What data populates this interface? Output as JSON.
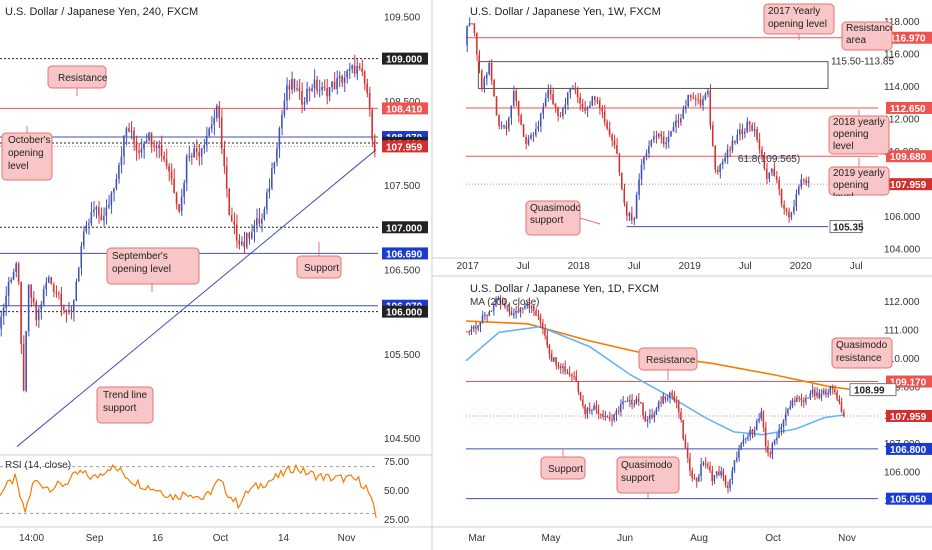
{
  "colors": {
    "up": "#3f51b5",
    "down": "#d32f2f",
    "resistance": "#ef5350",
    "support": "#3f51b5",
    "annotation_fill": "#f8c6c6",
    "annotation_stroke": "#e57373",
    "ma200": "#f57c00",
    "ma50": "#64b5f6",
    "rsi": "#f57c00",
    "frame": "#9e9e9e",
    "grid": "#eeeeee"
  },
  "chart_data": [
    {
      "type": "candlestick",
      "title": "U.S. Dollar / Japanese Yen, 240, FXCM",
      "ylim": [
        104.3,
        109.6
      ],
      "x_ticks": [
        "14:00",
        "Sep",
        "16",
        "Oct",
        "14",
        "Nov"
      ],
      "y_ticks": [
        "109.500",
        "108.500",
        "107.500",
        "106.500",
        "105.500",
        "104.500"
      ],
      "levels": [
        {
          "value": 109.0,
          "tag": "109.000",
          "style": "dotted"
        },
        {
          "value": 108.41,
          "tag": "108.410",
          "style": "resistance"
        },
        {
          "value": 108.07,
          "tag": "108.070",
          "style": "support"
        },
        {
          "value": 108.0,
          "tag": "108.000",
          "style": "dotted"
        },
        {
          "value": 107.959,
          "tag": "107.959",
          "style": "price"
        },
        {
          "value": 107.0,
          "tag": "107.000",
          "style": "dotted"
        },
        {
          "value": 106.69,
          "tag": "106.690",
          "style": "support"
        },
        {
          "value": 106.07,
          "tag": "106.070",
          "style": "support"
        },
        {
          "value": 106.0,
          "tag": "106.000",
          "style": "dotted"
        }
      ],
      "trendline": {
        "from": [
          0.045,
          104.4
        ],
        "to": [
          0.995,
          107.92
        ]
      },
      "annotations": [
        {
          "text": "Resistance"
        },
        {
          "text": "October's opening level"
        },
        {
          "text": "September's opening level"
        },
        {
          "text": "Support"
        },
        {
          "text": "Trend line support"
        }
      ],
      "path": [
        [
          0.0,
          105.8
        ],
        [
          0.03,
          106.4
        ],
        [
          0.05,
          106.6
        ],
        [
          0.065,
          105.0
        ],
        [
          0.08,
          106.3
        ],
        [
          0.1,
          105.9
        ],
        [
          0.13,
          106.4
        ],
        [
          0.16,
          106.2
        ],
        [
          0.19,
          105.9
        ],
        [
          0.22,
          106.8
        ],
        [
          0.25,
          107.2
        ],
        [
          0.28,
          107.1
        ],
        [
          0.31,
          107.6
        ],
        [
          0.34,
          108.2
        ],
        [
          0.37,
          107.9
        ],
        [
          0.39,
          108.1
        ],
        [
          0.42,
          108.0
        ],
        [
          0.45,
          107.7
        ],
        [
          0.48,
          107.2
        ],
        [
          0.5,
          107.9
        ],
        [
          0.53,
          107.9
        ],
        [
          0.56,
          108.2
        ],
        [
          0.58,
          108.4
        ],
        [
          0.6,
          107.6
        ],
        [
          0.61,
          107.1
        ],
        [
          0.63,
          106.9
        ],
        [
          0.65,
          106.8
        ],
        [
          0.67,
          107.0
        ],
        [
          0.7,
          107.1
        ],
        [
          0.72,
          107.6
        ],
        [
          0.74,
          108.1
        ],
        [
          0.76,
          108.6
        ],
        [
          0.78,
          108.7
        ],
        [
          0.8,
          108.5
        ],
        [
          0.83,
          108.7
        ],
        [
          0.86,
          108.6
        ],
        [
          0.89,
          108.7
        ],
        [
          0.92,
          108.8
        ],
        [
          0.945,
          108.9
        ],
        [
          0.96,
          108.8
        ],
        [
          0.975,
          108.6
        ],
        [
          0.985,
          108.2
        ],
        [
          0.995,
          107.96
        ]
      ],
      "rsi": {
        "label": "RSI (14, close)",
        "ylim": [
          20,
          80
        ],
        "y_ticks": [
          "75.00",
          "50.00",
          "25.00"
        ],
        "guides": [
          70,
          30
        ],
        "path": [
          [
            0.0,
            48
          ],
          [
            0.04,
            60
          ],
          [
            0.065,
            30
          ],
          [
            0.09,
            58
          ],
          [
            0.13,
            52
          ],
          [
            0.17,
            55
          ],
          [
            0.21,
            65
          ],
          [
            0.25,
            60
          ],
          [
            0.29,
            70
          ],
          [
            0.32,
            66
          ],
          [
            0.35,
            58
          ],
          [
            0.38,
            54
          ],
          [
            0.42,
            50
          ],
          [
            0.46,
            44
          ],
          [
            0.5,
            48
          ],
          [
            0.54,
            42
          ],
          [
            0.58,
            58
          ],
          [
            0.61,
            44
          ],
          [
            0.63,
            38
          ],
          [
            0.66,
            50
          ],
          [
            0.7,
            56
          ],
          [
            0.74,
            62
          ],
          [
            0.78,
            70
          ],
          [
            0.8,
            66
          ],
          [
            0.84,
            62
          ],
          [
            0.88,
            60
          ],
          [
            0.92,
            60
          ],
          [
            0.95,
            58
          ],
          [
            0.97,
            52
          ],
          [
            0.985,
            38
          ],
          [
            0.995,
            26
          ]
        ]
      }
    },
    {
      "type": "candlestick",
      "title": "U.S. Dollar / Japanese Yen, 1W, FXCM",
      "ylim": [
        103.6,
        118.8
      ],
      "x_ticks": [
        "2017",
        "Jul",
        "2018",
        "Jul",
        "2019",
        "Jul",
        "2020",
        "Jul"
      ],
      "y_ticks": [
        "118.000",
        "116.000",
        "114.000",
        "112.000",
        "110.000",
        "108.000",
        "106.000",
        "104.000"
      ],
      "levels": [
        {
          "value": 116.97,
          "tag": "116.970",
          "style": "resistance"
        },
        {
          "value": 112.65,
          "tag": "112.650",
          "style": "resistance"
        },
        {
          "value": 109.68,
          "tag": "109.680",
          "style": "resistance"
        },
        {
          "value": 107.959,
          "tag": "107.959",
          "style": "price"
        },
        {
          "value": 105.35,
          "tag": "105.35",
          "style": "support"
        }
      ],
      "zone": {
        "label": "115.50-113.85",
        "top": 115.5,
        "bottom": 113.85
      },
      "fib_label": "61.8(109.565)",
      "annotations": [
        {
          "text": "2017 Yearly opening level"
        },
        {
          "text": "Resistance area"
        },
        {
          "text": "2018 yearly opening level"
        },
        {
          "text": "2019 yearly opening level"
        },
        {
          "text": "Quasimodo support"
        }
      ],
      "path": [
        [
          0.0,
          116.5
        ],
        [
          0.01,
          118.2
        ],
        [
          0.025,
          117.0
        ],
        [
          0.04,
          113.8
        ],
        [
          0.06,
          115.3
        ],
        [
          0.08,
          111.8
        ],
        [
          0.1,
          111.5
        ],
        [
          0.12,
          113.5
        ],
        [
          0.15,
          110.3
        ],
        [
          0.18,
          111.5
        ],
        [
          0.2,
          113.8
        ],
        [
          0.23,
          112.2
        ],
        [
          0.26,
          114.0
        ],
        [
          0.29,
          112.6
        ],
        [
          0.32,
          113.5
        ],
        [
          0.345,
          111.5
        ],
        [
          0.37,
          110.0
        ],
        [
          0.39,
          106.3
        ],
        [
          0.41,
          105.8
        ],
        [
          0.43,
          109.5
        ],
        [
          0.46,
          111.0
        ],
        [
          0.49,
          110.5
        ],
        [
          0.52,
          112.0
        ],
        [
          0.55,
          113.6
        ],
        [
          0.57,
          112.8
        ],
        [
          0.59,
          113.6
        ],
        [
          0.6,
          110.7
        ],
        [
          0.61,
          108.8
        ],
        [
          0.63,
          109.5
        ],
        [
          0.66,
          110.8
        ],
        [
          0.69,
          111.8
        ],
        [
          0.71,
          110.8
        ],
        [
          0.73,
          108.5
        ],
        [
          0.75,
          108.8
        ],
        [
          0.77,
          106.8
        ],
        [
          0.79,
          105.6
        ],
        [
          0.8,
          106.9
        ],
        [
          0.82,
          108.2
        ],
        [
          0.835,
          107.95
        ]
      ]
    },
    {
      "type": "candlestick",
      "title": "U.S. Dollar / Japanese Yen, 1D, FXCM",
      "ma_label": "MA (200, close)",
      "ylim": [
        104.3,
        112.6
      ],
      "x_ticks": [
        "Mar",
        "May",
        "Jun",
        "Aug",
        "Oct",
        "Nov"
      ],
      "y_ticks": [
        "112.000",
        "111.000",
        "110.000",
        "109.000",
        "108.000",
        "107.000",
        "106.000",
        "105.000"
      ],
      "levels": [
        {
          "value": 109.17,
          "tag": "109.170",
          "style": "resistance"
        },
        {
          "value": 108.99,
          "tag": "108.99",
          "style": "label"
        },
        {
          "value": 107.959,
          "tag": "107.959",
          "style": "price"
        },
        {
          "value": 106.8,
          "tag": "106.800",
          "style": "support"
        },
        {
          "value": 105.05,
          "tag": "105.050",
          "style": "support"
        }
      ],
      "annotations": [
        {
          "text": "Resistance"
        },
        {
          "text": "Quasimodo resistance"
        },
        {
          "text": "Support"
        },
        {
          "text": "Quasimodo support"
        }
      ],
      "ma200": [
        [
          0.0,
          111.3
        ],
        [
          0.15,
          111.2
        ],
        [
          0.3,
          110.6
        ],
        [
          0.45,
          110.1
        ],
        [
          0.6,
          109.8
        ],
        [
          0.75,
          109.4
        ],
        [
          0.88,
          109.0
        ],
        [
          0.93,
          108.9
        ]
      ],
      "ma50": [
        [
          0.0,
          109.9
        ],
        [
          0.08,
          110.9
        ],
        [
          0.18,
          111.1
        ],
        [
          0.3,
          110.4
        ],
        [
          0.4,
          109.4
        ],
        [
          0.5,
          108.6
        ],
        [
          0.58,
          107.9
        ],
        [
          0.65,
          107.4
        ],
        [
          0.72,
          107.3
        ],
        [
          0.8,
          107.5
        ],
        [
          0.87,
          107.9
        ],
        [
          0.92,
          108.0
        ]
      ],
      "path": [
        [
          0.0,
          110.9
        ],
        [
          0.04,
          111.3
        ],
        [
          0.08,
          112.0
        ],
        [
          0.12,
          111.5
        ],
        [
          0.15,
          112.0
        ],
        [
          0.17,
          111.6
        ],
        [
          0.19,
          111.1
        ],
        [
          0.21,
          110.0
        ],
        [
          0.23,
          109.8
        ],
        [
          0.25,
          109.5
        ],
        [
          0.27,
          109.3
        ],
        [
          0.29,
          108.1
        ],
        [
          0.31,
          108.3
        ],
        [
          0.34,
          108.0
        ],
        [
          0.36,
          107.8
        ],
        [
          0.38,
          108.4
        ],
        [
          0.4,
          108.4
        ],
        [
          0.42,
          108.6
        ],
        [
          0.44,
          107.8
        ],
        [
          0.46,
          108.0
        ],
        [
          0.48,
          108.6
        ],
        [
          0.5,
          108.8
        ],
        [
          0.52,
          108.1
        ],
        [
          0.54,
          106.4
        ],
        [
          0.56,
          105.6
        ],
        [
          0.58,
          106.4
        ],
        [
          0.6,
          105.8
        ],
        [
          0.62,
          106.0
        ],
        [
          0.64,
          105.4
        ],
        [
          0.66,
          106.6
        ],
        [
          0.68,
          107.1
        ],
        [
          0.7,
          107.5
        ],
        [
          0.72,
          108.0
        ],
        [
          0.73,
          106.9
        ],
        [
          0.74,
          106.6
        ],
        [
          0.76,
          107.4
        ],
        [
          0.78,
          108.0
        ],
        [
          0.8,
          108.6
        ],
        [
          0.82,
          108.4
        ],
        [
          0.84,
          108.8
        ],
        [
          0.86,
          108.6
        ],
        [
          0.88,
          108.9
        ],
        [
          0.9,
          108.8
        ],
        [
          0.92,
          107.96
        ]
      ]
    }
  ]
}
